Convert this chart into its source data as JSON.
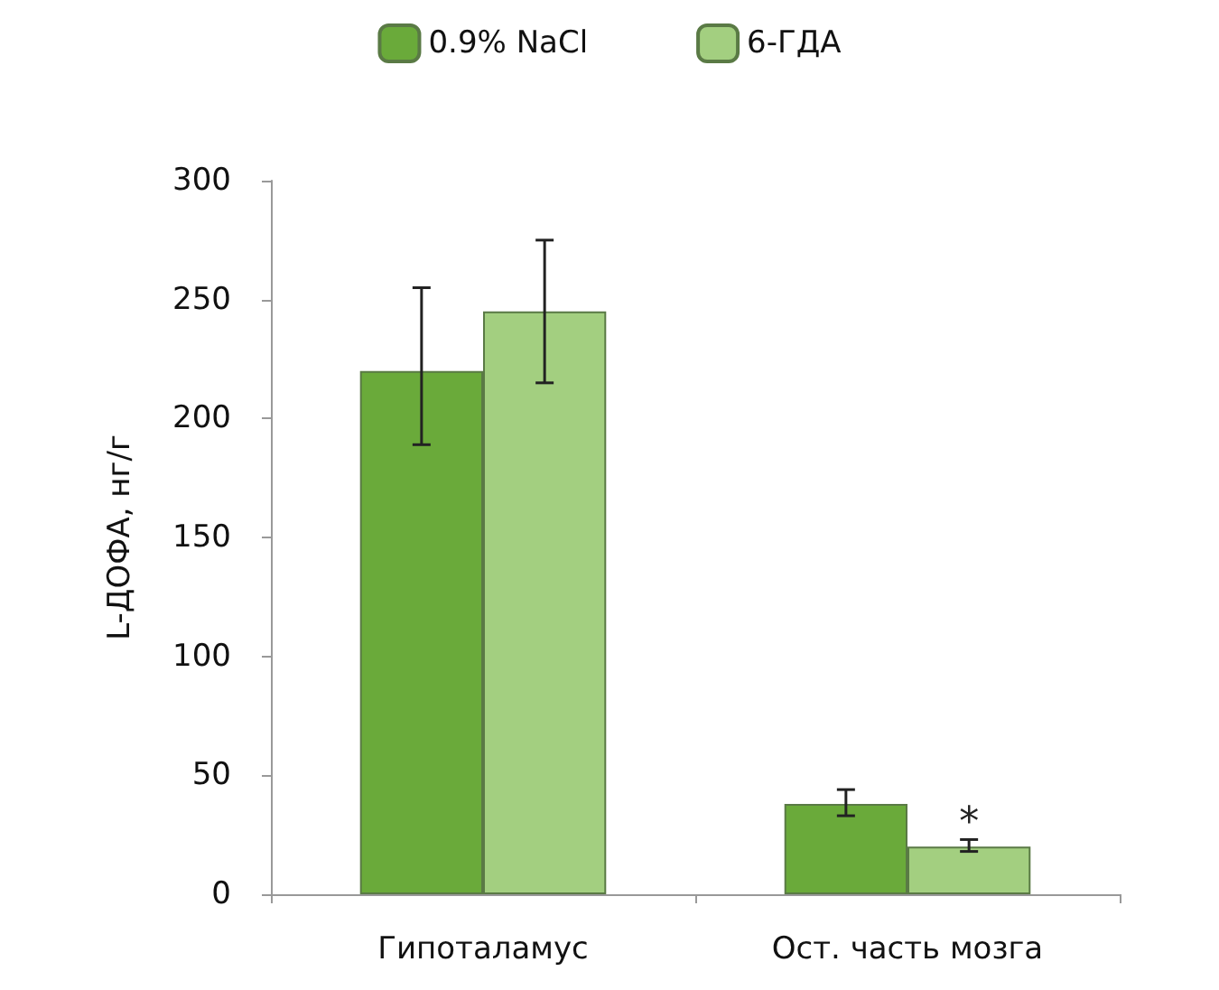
{
  "chart_data": {
    "type": "bar",
    "ylabel": "L-ДОФА, нг/г",
    "categories": [
      "Гипоталамус",
      "Ост. часть мозга"
    ],
    "series": [
      {
        "name": "0.9% NaCl",
        "color": "#6aaa3a",
        "values": [
          220,
          38
        ],
        "errors": [
          [
            189,
            255
          ],
          [
            33,
            44
          ]
        ]
      },
      {
        "name": "6-ГДА",
        "color": "#a3cf80",
        "values": [
          245,
          20
        ],
        "errors": [
          [
            215,
            275
          ],
          [
            18,
            23
          ]
        ]
      }
    ],
    "ylim": [
      0,
      300
    ],
    "yticks": [
      0,
      50,
      100,
      150,
      200,
      250,
      300
    ],
    "grid": false,
    "legend": "top",
    "annotations": [
      {
        "text": "*",
        "x": "Ост. часть мозга",
        "y": 30
      }
    ]
  }
}
